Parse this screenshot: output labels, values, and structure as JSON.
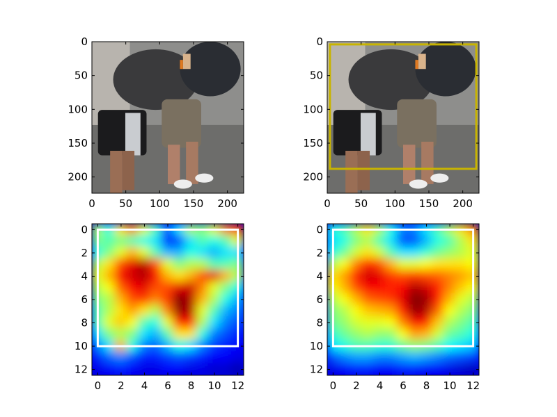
{
  "chart_data": [
    {
      "type": "image",
      "panel": "top-left",
      "content": "photo: two men in a street scuffle",
      "xticks": [
        "0",
        "50",
        "100",
        "150",
        "200"
      ],
      "yticks": [
        "0",
        "50",
        "100",
        "150",
        "200"
      ],
      "xlim": [
        0,
        224
      ],
      "ylim": [
        224,
        0
      ],
      "box": null
    },
    {
      "type": "image",
      "panel": "top-right",
      "content": "same photo with bounding box",
      "xticks": [
        "0",
        "50",
        "100",
        "150",
        "200"
      ],
      "yticks": [
        "0",
        "50",
        "100",
        "150",
        "200"
      ],
      "xlim": [
        0,
        224
      ],
      "ylim": [
        224,
        0
      ],
      "box": {
        "x0": 4,
        "y0": 4,
        "x1": 220,
        "y1": 188,
        "color": "#c8b400"
      }
    },
    {
      "type": "heatmap",
      "panel": "bottom-left",
      "colormap": "jet",
      "xticks": [
        "0",
        "2",
        "4",
        "6",
        "8",
        "10",
        "12"
      ],
      "yticks": [
        "0",
        "2",
        "4",
        "6",
        "8",
        "10",
        "12"
      ],
      "xlim": [
        -0.5,
        12.5
      ],
      "ylim": [
        12.5,
        -0.5
      ],
      "box": {
        "x0": 0,
        "y0": 0,
        "x1": 12,
        "y1": 10,
        "color": "#ffffff"
      },
      "values": [
        [
          0.55,
          0.4,
          0.65,
          0.75,
          0.6,
          0.45,
          0.2,
          0.35,
          0.55,
          0.5,
          0.6,
          0.75,
          0.85
        ],
        [
          0.5,
          0.45,
          0.5,
          0.45,
          0.4,
          0.35,
          0.15,
          0.2,
          0.35,
          0.45,
          0.4,
          0.45,
          0.6
        ],
        [
          0.4,
          0.5,
          0.6,
          0.7,
          0.6,
          0.45,
          0.3,
          0.3,
          0.4,
          0.35,
          0.3,
          0.35,
          0.35
        ],
        [
          0.55,
          0.65,
          0.8,
          0.9,
          0.95,
          0.8,
          0.6,
          0.5,
          0.55,
          0.55,
          0.45,
          0.45,
          0.5
        ],
        [
          0.6,
          0.7,
          0.88,
          0.92,
          0.95,
          0.88,
          0.7,
          0.65,
          0.7,
          0.8,
          0.9,
          0.7,
          0.55
        ],
        [
          0.55,
          0.62,
          0.78,
          0.88,
          0.9,
          0.8,
          0.8,
          0.9,
          0.92,
          0.75,
          0.6,
          0.5,
          0.4
        ],
        [
          0.5,
          0.55,
          0.7,
          0.8,
          0.82,
          0.75,
          0.82,
          1.0,
          0.95,
          0.7,
          0.55,
          0.4,
          0.3
        ],
        [
          0.45,
          0.55,
          0.65,
          0.72,
          0.65,
          0.55,
          0.75,
          0.98,
          0.95,
          0.6,
          0.45,
          0.3,
          0.25
        ],
        [
          0.45,
          0.6,
          0.68,
          0.62,
          0.45,
          0.4,
          0.6,
          0.85,
          0.85,
          0.55,
          0.35,
          0.25,
          0.2
        ],
        [
          0.35,
          0.5,
          0.55,
          0.5,
          0.35,
          0.3,
          0.45,
          0.65,
          0.65,
          0.4,
          0.25,
          0.2,
          0.15
        ],
        [
          0.25,
          0.35,
          0.7,
          0.4,
          0.25,
          0.22,
          0.3,
          0.4,
          0.35,
          0.25,
          0.18,
          0.15,
          0.12
        ],
        [
          0.15,
          0.22,
          0.25,
          0.2,
          0.15,
          0.15,
          0.18,
          0.2,
          0.18,
          0.15,
          0.12,
          0.12,
          0.1
        ],
        [
          0.1,
          0.12,
          0.15,
          0.12,
          0.1,
          0.1,
          0.12,
          0.12,
          0.1,
          0.1,
          0.08,
          0.08,
          0.05
        ]
      ]
    },
    {
      "type": "heatmap",
      "panel": "bottom-right",
      "colormap": "jet",
      "xticks": [
        "0",
        "2",
        "4",
        "6",
        "8",
        "10",
        "12"
      ],
      "yticks": [
        "0",
        "2",
        "4",
        "6",
        "8",
        "10",
        "12"
      ],
      "xlim": [
        -0.5,
        12.5
      ],
      "ylim": [
        12.5,
        -0.5
      ],
      "box": {
        "x0": 0,
        "y0": 0,
        "x1": 12,
        "y1": 10,
        "color": "#ffffff"
      },
      "values": [
        [
          0.4,
          0.45,
          0.55,
          0.65,
          0.55,
          0.4,
          0.25,
          0.25,
          0.35,
          0.45,
          0.55,
          0.65,
          0.75
        ],
        [
          0.35,
          0.4,
          0.5,
          0.55,
          0.45,
          0.35,
          0.2,
          0.2,
          0.3,
          0.4,
          0.45,
          0.55,
          0.65
        ],
        [
          0.4,
          0.48,
          0.58,
          0.65,
          0.58,
          0.45,
          0.35,
          0.35,
          0.42,
          0.48,
          0.52,
          0.55,
          0.6
        ],
        [
          0.55,
          0.62,
          0.75,
          0.85,
          0.8,
          0.7,
          0.6,
          0.6,
          0.62,
          0.65,
          0.65,
          0.65,
          0.62
        ],
        [
          0.65,
          0.72,
          0.85,
          0.92,
          0.9,
          0.82,
          0.8,
          0.82,
          0.8,
          0.78,
          0.75,
          0.72,
          0.68
        ],
        [
          0.62,
          0.7,
          0.8,
          0.88,
          0.88,
          0.85,
          0.88,
          0.95,
          0.92,
          0.85,
          0.75,
          0.68,
          0.62
        ],
        [
          0.55,
          0.62,
          0.7,
          0.78,
          0.8,
          0.82,
          0.9,
          1.0,
          0.97,
          0.85,
          0.7,
          0.6,
          0.55
        ],
        [
          0.5,
          0.55,
          0.62,
          0.68,
          0.7,
          0.72,
          0.85,
          0.98,
          0.95,
          0.78,
          0.62,
          0.55,
          0.5
        ],
        [
          0.48,
          0.52,
          0.58,
          0.6,
          0.6,
          0.62,
          0.75,
          0.88,
          0.85,
          0.68,
          0.55,
          0.5,
          0.45
        ],
        [
          0.42,
          0.48,
          0.52,
          0.55,
          0.52,
          0.52,
          0.62,
          0.72,
          0.7,
          0.58,
          0.48,
          0.45,
          0.4
        ],
        [
          0.35,
          0.4,
          0.45,
          0.45,
          0.42,
          0.42,
          0.48,
          0.52,
          0.5,
          0.45,
          0.38,
          0.35,
          0.32
        ],
        [
          0.2,
          0.25,
          0.28,
          0.28,
          0.25,
          0.25,
          0.28,
          0.3,
          0.28,
          0.25,
          0.22,
          0.2,
          0.18
        ],
        [
          0.1,
          0.12,
          0.15,
          0.15,
          0.12,
          0.12,
          0.15,
          0.15,
          0.12,
          0.12,
          0.1,
          0.08,
          0.06
        ]
      ]
    }
  ]
}
